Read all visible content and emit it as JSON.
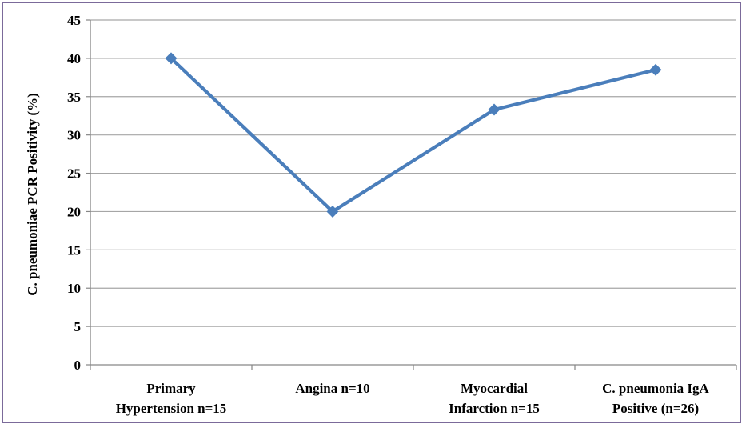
{
  "chart_data": {
    "type": "line",
    "title": "",
    "xlabel": "",
    "ylabel": "C. pneumoniae PCR Positivity (%)",
    "ylim": [
      0,
      45
    ],
    "ytick_step": 5,
    "grid": true,
    "legend": "none",
    "categories": [
      [
        "Primary",
        "Hypertension n=15"
      ],
      [
        "Angina n=10"
      ],
      [
        "Myocardial",
        "Infarction n=15"
      ],
      [
        "C. pneumonia IgA",
        "Positive (n=26)"
      ]
    ],
    "series": [
      {
        "values": [
          40,
          20,
          33.3,
          38.5
        ],
        "color": "#4a7ebb",
        "marker": "diamond"
      }
    ]
  }
}
